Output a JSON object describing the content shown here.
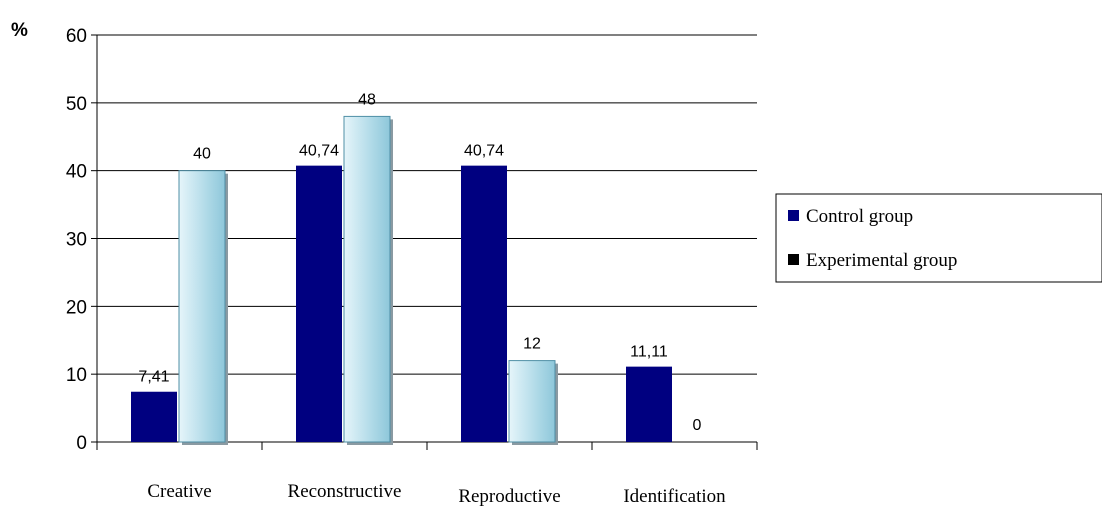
{
  "chart_data": {
    "type": "bar",
    "title": "",
    "ylabel": "%",
    "xlabel": "",
    "categories": [
      "Creative",
      "Reconstructive",
      "Reproductive",
      "Identification"
    ],
    "series": [
      {
        "name": "Control group",
        "values": [
          7.41,
          40.74,
          40.74,
          11.11
        ],
        "labels": [
          "7,41",
          "40,74",
          "40,74",
          "11,11"
        ],
        "color": "#000080"
      },
      {
        "name": "Experimental group",
        "values": [
          40,
          48,
          12,
          0
        ],
        "labels": [
          "40",
          "48",
          "12",
          "0"
        ],
        "color": "#a6d5e4"
      }
    ],
    "ylim": [
      0,
      60
    ],
    "yticks": [
      0,
      10,
      20,
      30,
      40,
      50,
      60
    ],
    "grid": true,
    "legend": "right",
    "legend_marker_colors": [
      "#000080",
      "#000000"
    ]
  }
}
